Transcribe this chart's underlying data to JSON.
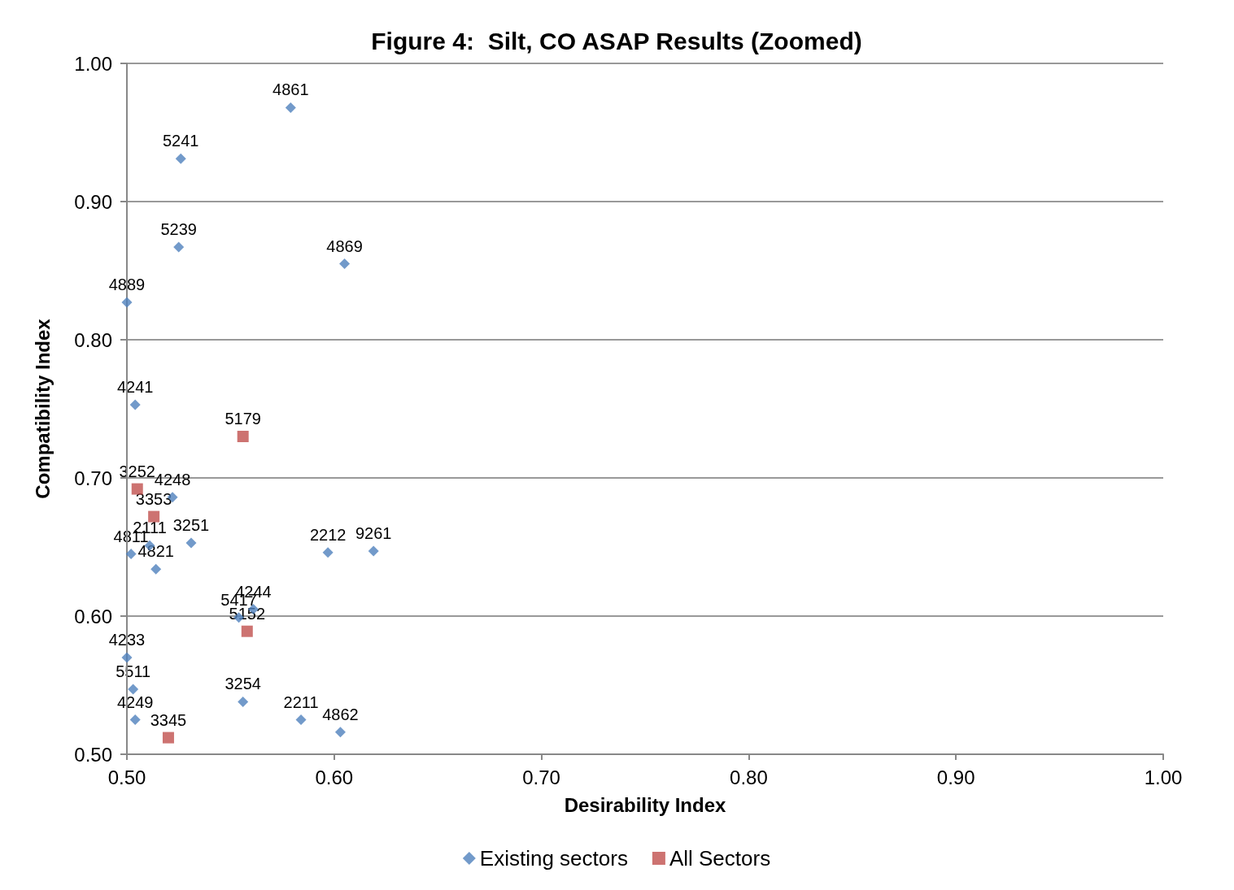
{
  "chart_data": {
    "type": "scatter",
    "title": "Figure 4:  Silt, CO ASAP Results (Zoomed)",
    "xlabel": "Desirability Index",
    "ylabel": "Compatibility Index",
    "xlim": [
      0.5,
      1.0
    ],
    "ylim": [
      0.5,
      1.0
    ],
    "xticks": [
      {
        "value": 0.5,
        "label": "0.50"
      },
      {
        "value": 0.6,
        "label": "0.60"
      },
      {
        "value": 0.7,
        "label": "0.70"
      },
      {
        "value": 0.8,
        "label": "0.80"
      },
      {
        "value": 0.9,
        "label": "0.90"
      },
      {
        "value": 1.0,
        "label": "1.00"
      }
    ],
    "yticks": [
      {
        "value": 0.5,
        "label": "0.50"
      },
      {
        "value": 0.6,
        "label": "0.60"
      },
      {
        "value": 0.7,
        "label": "0.70"
      },
      {
        "value": 0.8,
        "label": "0.80"
      },
      {
        "value": 0.9,
        "label": "0.90"
      },
      {
        "value": 1.0,
        "label": "1.00"
      }
    ],
    "grid": "y",
    "legend": "bottom",
    "series": [
      {
        "name": "Existing sectors",
        "color": "#4f81bd",
        "marker": "diamond",
        "x": [
          0.579,
          0.526,
          0.525,
          0.605,
          0.5,
          0.504,
          0.522,
          0.531,
          0.511,
          0.502,
          0.514,
          0.597,
          0.619,
          0.561,
          0.554,
          0.5,
          0.503,
          0.504,
          0.556,
          0.584,
          0.603
        ],
        "values": [
          0.968,
          0.931,
          0.867,
          0.855,
          0.827,
          0.753,
          0.686,
          0.653,
          0.651,
          0.645,
          0.634,
          0.646,
          0.647,
          0.605,
          0.599,
          0.57,
          0.547,
          0.525,
          0.538,
          0.525,
          0.516
        ]
      },
      {
        "name": "All Sectors",
        "color": "#c0504d",
        "marker": "square",
        "x": [
          0.505,
          0.513,
          0.556,
          0.558,
          0.52
        ],
        "values": [
          0.692,
          0.672,
          0.73,
          0.589,
          0.512
        ]
      }
    ],
    "annotations": [
      {
        "text": "4861",
        "x": 0.579,
        "y": 0.968
      },
      {
        "text": "5241",
        "x": 0.526,
        "y": 0.931
      },
      {
        "text": "5239",
        "x": 0.525,
        "y": 0.867
      },
      {
        "text": "4869",
        "x": 0.605,
        "y": 0.855
      },
      {
        "text": "4889",
        "x": 0.5,
        "y": 0.827
      },
      {
        "text": "4241",
        "x": 0.504,
        "y": 0.753
      },
      {
        "text": "4248",
        "x": 0.522,
        "y": 0.686
      },
      {
        "text": "3251",
        "x": 0.531,
        "y": 0.653
      },
      {
        "text": "2111",
        "x": 0.511,
        "y": 0.651
      },
      {
        "text": "4811",
        "x": 0.502,
        "y": 0.645
      },
      {
        "text": "4821",
        "x": 0.514,
        "y": 0.634
      },
      {
        "text": "2212",
        "x": 0.597,
        "y": 0.646
      },
      {
        "text": "9261",
        "x": 0.619,
        "y": 0.647
      },
      {
        "text": "4244",
        "x": 0.561,
        "y": 0.605
      },
      {
        "text": "5417",
        "x": 0.554,
        "y": 0.599
      },
      {
        "text": "4233",
        "x": 0.5,
        "y": 0.57
      },
      {
        "text": "5511",
        "x": 0.503,
        "y": 0.547
      },
      {
        "text": "4249",
        "x": 0.504,
        "y": 0.525
      },
      {
        "text": "3254",
        "x": 0.556,
        "y": 0.538
      },
      {
        "text": "2211",
        "x": 0.584,
        "y": 0.525
      },
      {
        "text": "4862",
        "x": 0.603,
        "y": 0.516
      },
      {
        "text": "3252",
        "x": 0.505,
        "y": 0.692
      },
      {
        "text": "3353",
        "x": 0.513,
        "y": 0.672
      },
      {
        "text": "5179",
        "x": 0.556,
        "y": 0.73
      },
      {
        "text": "5152",
        "x": 0.558,
        "y": 0.589
      },
      {
        "text": "3345",
        "x": 0.52,
        "y": 0.512
      }
    ]
  }
}
